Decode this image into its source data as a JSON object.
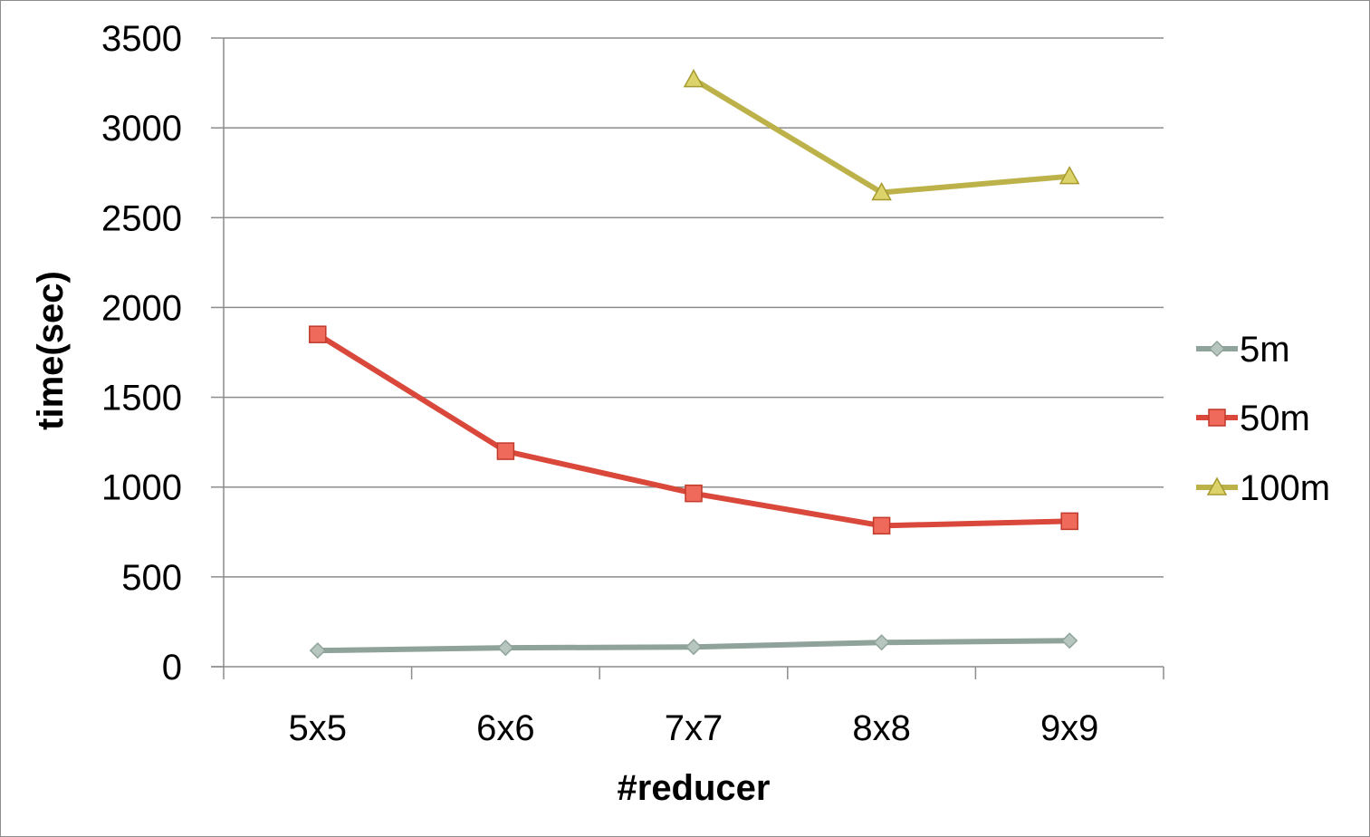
{
  "chart_data": {
    "type": "line",
    "title": "",
    "xlabel": "#reducer",
    "ylabel": "time(sec)",
    "categories": [
      "5x5",
      "6x6",
      "7x7",
      "8x8",
      "9x9"
    ],
    "ylim": [
      0,
      3500
    ],
    "yticks": [
      0,
      500,
      1000,
      1500,
      2000,
      2500,
      3000,
      3500
    ],
    "grid": true,
    "legend": "right",
    "series": [
      {
        "name": "5m",
        "values": [
          90,
          105,
          110,
          135,
          145
        ],
        "color": "#8fa39a",
        "marker": "diamond"
      },
      {
        "name": "50m",
        "values": [
          1850,
          1200,
          965,
          785,
          810
        ],
        "color": "#d9483b",
        "marker": "square"
      },
      {
        "name": "100m",
        "values": [
          null,
          null,
          3270,
          2640,
          2730
        ],
        "color": "#bdb24a",
        "marker": "triangle"
      }
    ]
  }
}
